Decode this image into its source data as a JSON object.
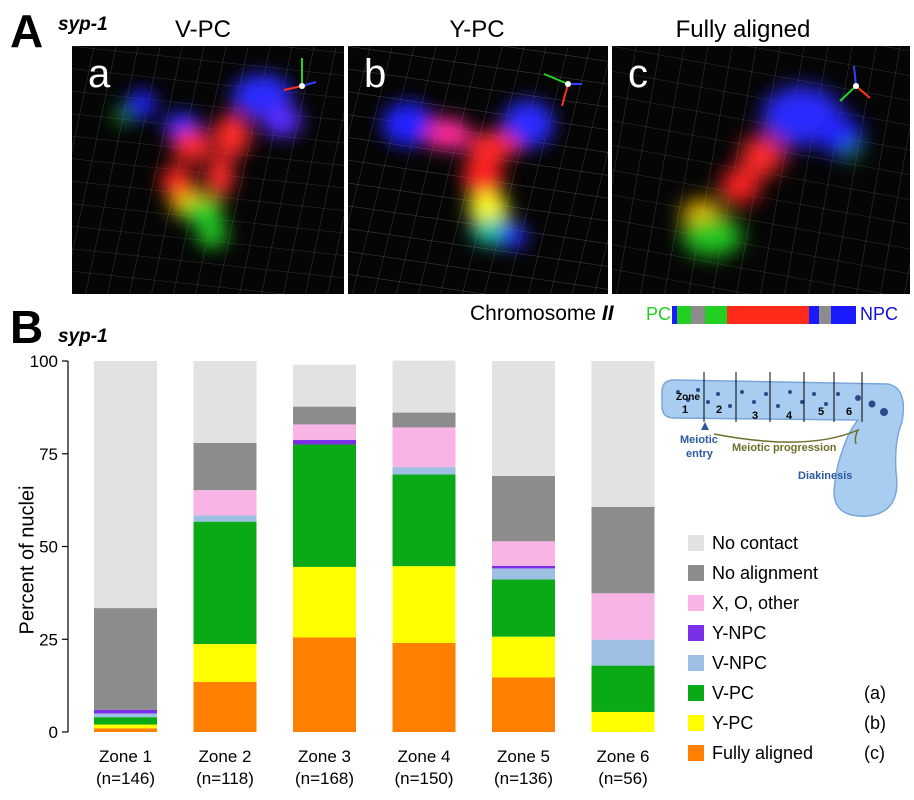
{
  "panel_a": {
    "letter": "A",
    "strain": "syp-1",
    "images": [
      {
        "letter": "a",
        "title": "V-PC"
      },
      {
        "letter": "b",
        "title": "Y-PC"
      },
      {
        "letter": "c",
        "title": "Fully aligned"
      }
    ],
    "chromosome": {
      "label": "Chromosome",
      "number": "II",
      "left_end": "PC",
      "right_end": "NPC"
    }
  },
  "panel_b": {
    "letter": "B",
    "strain": "syp-1"
  },
  "schematic": {
    "zone_word": "Zone",
    "zones": [
      "1",
      "2",
      "3",
      "4",
      "5",
      "6"
    ],
    "meiotic_entry": [
      "Meiotic",
      "entry"
    ],
    "progression": "Meiotic progression",
    "diakinesis": "Diakinesis"
  },
  "colors": {
    "no_contact": "#e2e2e2",
    "no_alignment": "#8c8c8c",
    "x_o_other": "#f9b4e6",
    "y_npc": "#7b2fe8",
    "v_npc": "#9dbfe4",
    "v_pc": "#0aaa16",
    "y_pc": "#ffff00",
    "fully_aligned": "#ff7f00"
  },
  "chart_data": {
    "type": "bar",
    "stacked": true,
    "ylabel": "Percent of nuclei",
    "ylim": [
      0,
      100
    ],
    "yticks": [
      0,
      25,
      50,
      75,
      100
    ],
    "categories": [
      "Zone 1",
      "Zone 2",
      "Zone 3",
      "Zone 4",
      "Zone 5",
      "Zone 6"
    ],
    "category_sub": [
      "(n=146)",
      "(n=118)",
      "(n=168)",
      "(n=150)",
      "(n=136)",
      "(n=56)"
    ],
    "series": [
      {
        "name": "Fully aligned",
        "tag": "(c)",
        "color_key": "fully_aligned",
        "values": [
          1,
          13.5,
          25.5,
          24,
          14.7,
          0
        ]
      },
      {
        "name": "Y-PC",
        "tag": "(b)",
        "color_key": "y_pc",
        "values": [
          1,
          10.2,
          19,
          20.7,
          11,
          5.4
        ]
      },
      {
        "name": "V-PC",
        "tag": "(a)",
        "color_key": "v_pc",
        "values": [
          2,
          33,
          33,
          24.7,
          15.4,
          12.5
        ]
      },
      {
        "name": "V-NPC",
        "tag": "",
        "color_key": "v_npc",
        "values": [
          1,
          1.7,
          0,
          2,
          3,
          7
        ]
      },
      {
        "name": "Y-NPC",
        "tag": "",
        "color_key": "y_npc",
        "values": [
          1,
          0,
          1.2,
          0,
          0.7,
          0
        ]
      },
      {
        "name": "X, O, other",
        "tag": "",
        "color_key": "x_o_other",
        "values": [
          0,
          6.8,
          4.2,
          10.7,
          6.6,
          12.5
        ]
      },
      {
        "name": "No alignment",
        "tag": "",
        "color_key": "no_alignment",
        "values": [
          27.4,
          12.7,
          4.8,
          4,
          17.6,
          23.3
        ]
      },
      {
        "name": "No contact",
        "tag": "",
        "color_key": "no_contact",
        "values": [
          66.6,
          22.1,
          11.3,
          14,
          31,
          39.3
        ]
      }
    ]
  }
}
